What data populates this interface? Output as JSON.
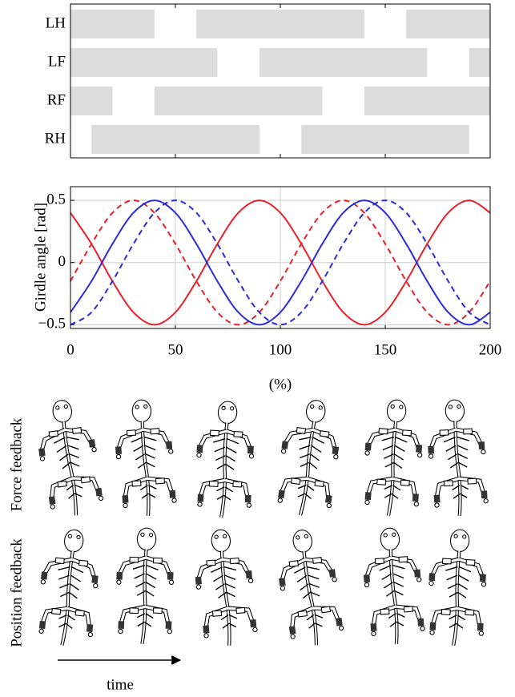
{
  "chart_data": [
    {
      "type": "gait",
      "row_labels": [
        "LH",
        "LF",
        "RF",
        "RH"
      ],
      "stance": [
        [
          [
            0,
            40
          ],
          [
            60,
            140
          ],
          [
            160,
            200
          ]
        ],
        [
          [
            0,
            70
          ],
          [
            90,
            170
          ],
          [
            190,
            200
          ]
        ],
        [
          [
            0,
            20
          ],
          [
            40,
            120
          ],
          [
            140,
            200
          ]
        ],
        [
          [
            10,
            90
          ],
          [
            110,
            190
          ]
        ]
      ],
      "xlim": [
        0,
        200
      ],
      "xticks": [
        0,
        50,
        100,
        150,
        200
      ],
      "color": "#dcdcdc"
    },
    {
      "type": "line",
      "ylabel": "Girdle angle [rad]",
      "xlabel": "(%)",
      "x": [
        0,
        10,
        20,
        30,
        40,
        50,
        60,
        70,
        80,
        90,
        100,
        110,
        120,
        130,
        140,
        150,
        160,
        170,
        180,
        190,
        200
      ],
      "series": [
        {
          "color": "#e8202a",
          "dash": false,
          "values": [
            0.4,
            0.15,
            -0.15,
            -0.4,
            -0.5,
            -0.4,
            -0.15,
            0.15,
            0.4,
            0.5,
            0.4,
            0.15,
            -0.15,
            -0.4,
            -0.5,
            -0.4,
            -0.15,
            0.15,
            0.4,
            0.5,
            0.4
          ]
        },
        {
          "color": "#e8202a",
          "dash": true,
          "values": [
            -0.15,
            0.15,
            0.4,
            0.5,
            0.4,
            0.15,
            -0.15,
            -0.4,
            -0.5,
            -0.4,
            -0.15,
            0.15,
            0.4,
            0.5,
            0.4,
            0.15,
            -0.15,
            -0.4,
            -0.5,
            -0.4,
            -0.15
          ]
        },
        {
          "color": "#2b2bdc",
          "dash": false,
          "values": [
            -0.4,
            -0.15,
            0.15,
            0.4,
            0.5,
            0.4,
            0.15,
            -0.15,
            -0.4,
            -0.5,
            -0.4,
            -0.15,
            0.15,
            0.4,
            0.5,
            0.4,
            0.15,
            -0.15,
            -0.4,
            -0.5,
            -0.4
          ]
        },
        {
          "color": "#2b2bdc",
          "dash": true,
          "values": [
            -0.5,
            -0.4,
            -0.15,
            0.15,
            0.4,
            0.5,
            0.4,
            0.15,
            -0.15,
            -0.4,
            -0.5,
            -0.4,
            -0.15,
            0.15,
            0.4,
            0.5,
            0.4,
            0.15,
            -0.15,
            -0.4,
            -0.5
          ]
        }
      ],
      "xlim": [
        0,
        200
      ],
      "ylim": [
        -0.53,
        0.61
      ],
      "xticks": [
        0,
        50,
        100,
        150,
        200
      ],
      "yticks": [
        {
          "value": -0.5,
          "label": "−0.5"
        },
        0,
        0.5
      ],
      "grid": true
    }
  ],
  "panels": {
    "rows": [
      "Force feedback",
      "Position feedback"
    ],
    "arrow_label": "time"
  }
}
